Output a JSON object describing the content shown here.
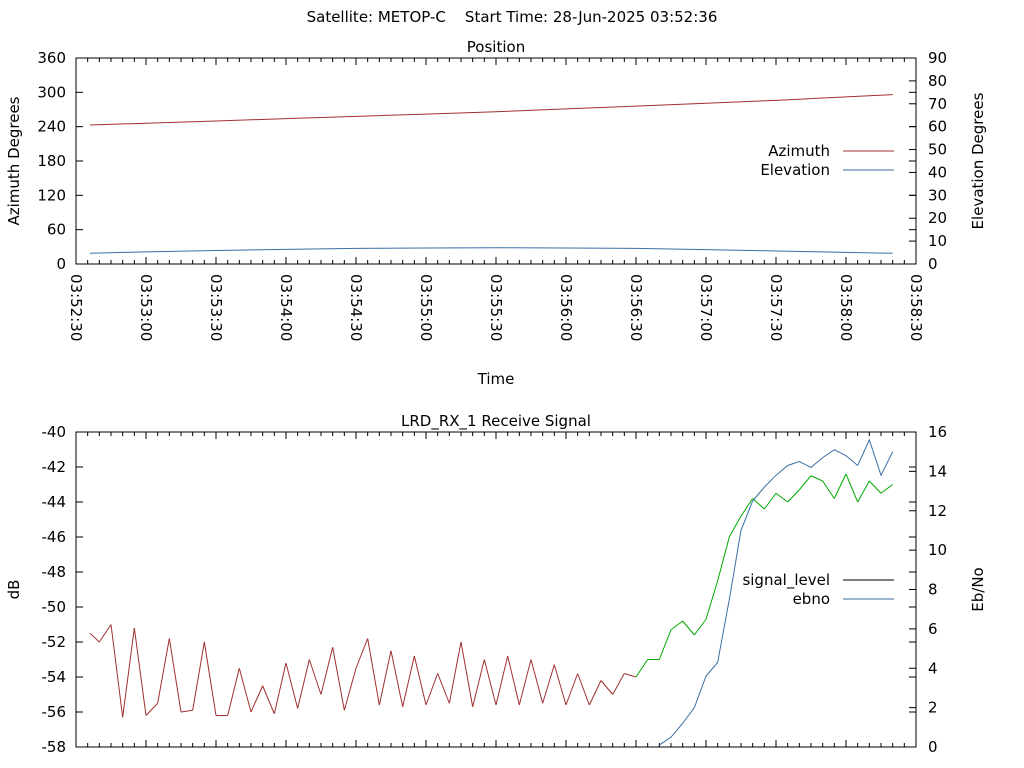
{
  "header": {
    "title": "Satellite: METOP-C    Start Time: 28-Jun-2025 03:52:36"
  },
  "chart_data": [
    {
      "type": "line",
      "title": "Position",
      "xlabel": "Time",
      "ylabel": "Azimuth Degrees",
      "y2label": "Elevation Degrees",
      "x_ticks": [
        "03:52:30",
        "03:53:00",
        "03:53:30",
        "03:54:00",
        "03:54:30",
        "03:55:00",
        "03:55:30",
        "03:56:00",
        "03:56:30",
        "03:57:00",
        "03:57:30",
        "03:58:00",
        "03:58:30"
      ],
      "ylim": [
        0,
        360
      ],
      "y_ticks": [
        0,
        60,
        120,
        180,
        240,
        300,
        360
      ],
      "y2lim": [
        0,
        90
      ],
      "y2_ticks": [
        0,
        10,
        20,
        30,
        40,
        50,
        60,
        70,
        80,
        90
      ],
      "legend_position": "right",
      "grid": false,
      "series": [
        {
          "name": "Azimuth",
          "axis": "left",
          "color": "#a03030",
          "x": [
            "03:52:36",
            "03:53:00",
            "03:53:30",
            "03:54:00",
            "03:54:30",
            "03:55:00",
            "03:55:30",
            "03:56:00",
            "03:56:30",
            "03:57:00",
            "03:57:30",
            "03:58:00",
            "03:58:20"
          ],
          "values": [
            243,
            246,
            250,
            254,
            258,
            262,
            266,
            271,
            276,
            281,
            286,
            292,
            296
          ]
        },
        {
          "name": "Elevation",
          "axis": "right",
          "color": "#3a6ea5",
          "x": [
            "03:52:36",
            "03:53:00",
            "03:53:30",
            "03:54:00",
            "03:54:30",
            "03:55:00",
            "03:55:30",
            "03:56:00",
            "03:56:30",
            "03:57:00",
            "03:57:30",
            "03:58:00",
            "03:58:20"
          ],
          "values": [
            4.7,
            5.3,
            5.9,
            6.4,
            6.8,
            7.0,
            7.1,
            7.0,
            6.8,
            6.3,
            5.7,
            5.1,
            4.7
          ]
        }
      ]
    },
    {
      "type": "line",
      "title": "LRD_RX_1 Receive Signal",
      "xlabel": "",
      "ylabel": "dB",
      "y2label": "Eb/No",
      "ylim": [
        -58,
        -40
      ],
      "y_ticks": [
        -40,
        -42,
        -44,
        -46,
        -48,
        -50,
        -52,
        -54,
        -56,
        -58
      ],
      "y2lim": [
        0,
        16
      ],
      "y2_ticks": [
        0,
        2,
        4,
        6,
        8,
        10,
        12,
        14,
        16
      ],
      "legend_position": "right",
      "grid": false,
      "series": [
        {
          "name": "signal_level",
          "axis": "left",
          "legend_color": "#000000",
          "color_low": "#a03030",
          "color_high": "#00aa00",
          "x": [
            "03:52:36",
            "03:52:40",
            "03:52:45",
            "03:52:50",
            "03:52:55",
            "03:53:00",
            "03:53:05",
            "03:53:10",
            "03:53:15",
            "03:53:20",
            "03:53:25",
            "03:53:30",
            "03:53:35",
            "03:53:40",
            "03:53:45",
            "03:53:50",
            "03:53:55",
            "03:54:00",
            "03:54:05",
            "03:54:10",
            "03:54:15",
            "03:54:20",
            "03:54:25",
            "03:54:30",
            "03:54:35",
            "03:54:40",
            "03:54:45",
            "03:54:50",
            "03:54:55",
            "03:55:00",
            "03:55:05",
            "03:55:10",
            "03:55:15",
            "03:55:20",
            "03:55:25",
            "03:55:30",
            "03:55:35",
            "03:55:40",
            "03:55:45",
            "03:55:50",
            "03:55:55",
            "03:56:00",
            "03:56:05",
            "03:56:10",
            "03:56:15",
            "03:56:20",
            "03:56:25",
            "03:56:30",
            "03:56:35",
            "03:56:40",
            "03:56:45",
            "03:56:50",
            "03:56:55",
            "03:57:00",
            "03:57:05",
            "03:57:10",
            "03:57:15",
            "03:57:20",
            "03:57:25",
            "03:57:30",
            "03:57:35",
            "03:57:40",
            "03:57:45",
            "03:57:50",
            "03:57:55",
            "03:58:00",
            "03:58:05",
            "03:58:10",
            "03:58:15",
            "03:58:20"
          ],
          "values": [
            -51.5,
            -52.0,
            -51.0,
            -56.3,
            -51.2,
            -56.2,
            -55.5,
            -51.8,
            -56.0,
            -55.9,
            -52.0,
            -56.2,
            -56.2,
            -53.5,
            -56.0,
            -54.5,
            -56.1,
            -53.2,
            -55.8,
            -53.0,
            -55.0,
            -52.3,
            -55.9,
            -53.5,
            -51.8,
            -55.6,
            -52.5,
            -55.7,
            -52.8,
            -55.6,
            -53.8,
            -55.5,
            -52.0,
            -55.7,
            -53.0,
            -55.6,
            -52.8,
            -55.6,
            -53.0,
            -55.5,
            -53.3,
            -55.6,
            -53.8,
            -55.6,
            -54.2,
            -55.0,
            -53.8,
            -54.0,
            -53.0,
            -53.0,
            -51.3,
            -50.8,
            -51.6,
            -50.7,
            -48.5,
            -46.0,
            -44.8,
            -43.8,
            -44.4,
            -43.5,
            -44.0,
            -43.3,
            -42.5,
            -42.8,
            -43.8,
            -42.4,
            -44.0,
            -42.8,
            -43.5,
            -43.0
          ]
        },
        {
          "name": "ebno",
          "axis": "right",
          "color": "#3a6ea5",
          "x": [
            "03:56:40",
            "03:56:45",
            "03:56:50",
            "03:56:55",
            "03:57:00",
            "03:57:05",
            "03:57:10",
            "03:57:15",
            "03:57:20",
            "03:57:25",
            "03:57:30",
            "03:57:35",
            "03:57:40",
            "03:57:45",
            "03:57:50",
            "03:57:55",
            "03:58:00",
            "03:58:05",
            "03:58:10",
            "03:58:15",
            "03:58:20"
          ],
          "values": [
            0.1,
            0.5,
            1.2,
            2.0,
            3.6,
            4.3,
            7.5,
            11.0,
            12.5,
            13.2,
            13.8,
            14.3,
            14.5,
            14.2,
            14.7,
            15.1,
            14.8,
            14.3,
            15.6,
            13.8,
            15.0
          ]
        }
      ]
    }
  ]
}
